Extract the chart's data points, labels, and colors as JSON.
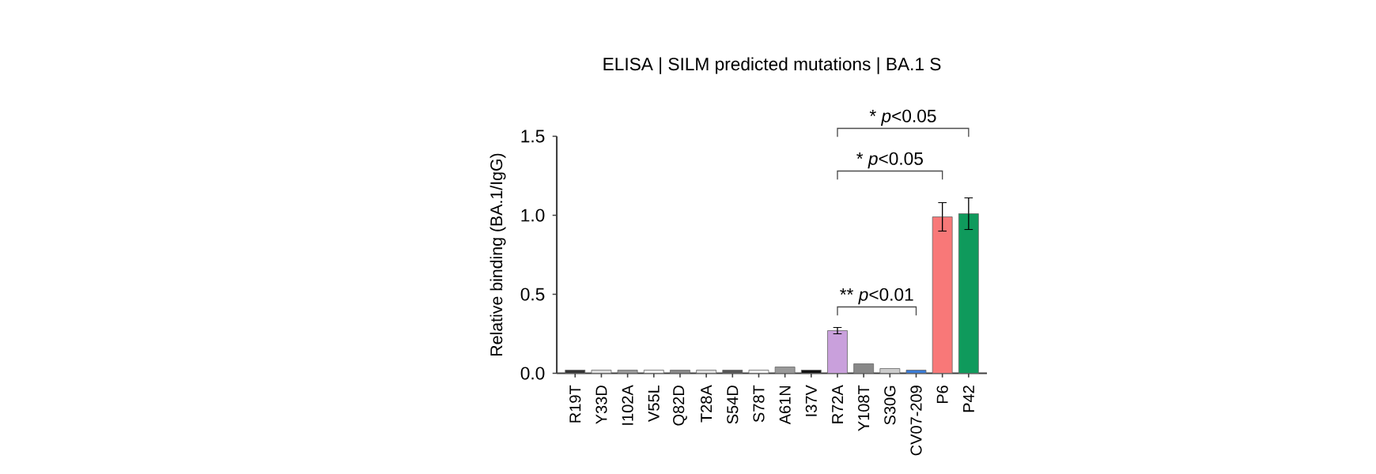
{
  "chart_data": {
    "type": "bar",
    "title": "ELISA | SILM predicted mutations | BA.1 S",
    "ylabel": "Relative binding (BA.1/IgG)",
    "categories": [
      "R19T",
      "Y33D",
      "I102A",
      "V55L",
      "Q82D",
      "T28A",
      "S54D",
      "S78T",
      "A61N",
      "I37V",
      "R72A",
      "Y108T",
      "S30G",
      "CV07-209",
      "P6",
      "P42"
    ],
    "values": [
      0.02,
      0.02,
      0.02,
      0.02,
      0.02,
      0.02,
      0.02,
      0.02,
      0.04,
      0.02,
      0.27,
      0.06,
      0.03,
      0.02,
      0.99,
      1.01
    ],
    "errors": [
      null,
      null,
      null,
      null,
      null,
      null,
      null,
      null,
      null,
      null,
      0.02,
      null,
      null,
      null,
      0.09,
      0.1
    ],
    "colors": [
      "#333333",
      "#dddddd",
      "#999999",
      "#eeeeee",
      "#888888",
      "#dddddd",
      "#555555",
      "#eeeeee",
      "#999999",
      "#111111",
      "#c9a0dc",
      "#888888",
      "#cccccc",
      "#3a7bd5",
      "#f87878",
      "#0f9a5c"
    ],
    "ylim": [
      0,
      1.5
    ],
    "yticks": [
      {
        "value": 0,
        "label": "0.0"
      },
      {
        "value": 0.5,
        "label": "0.5"
      },
      {
        "value": 1.0,
        "label": "1.0"
      },
      {
        "value": 1.5,
        "label": "1.5"
      }
    ],
    "annotations": [
      "** *p*<0.01",
      "* *p*<0.05",
      "* *p*<0.05"
    ]
  }
}
